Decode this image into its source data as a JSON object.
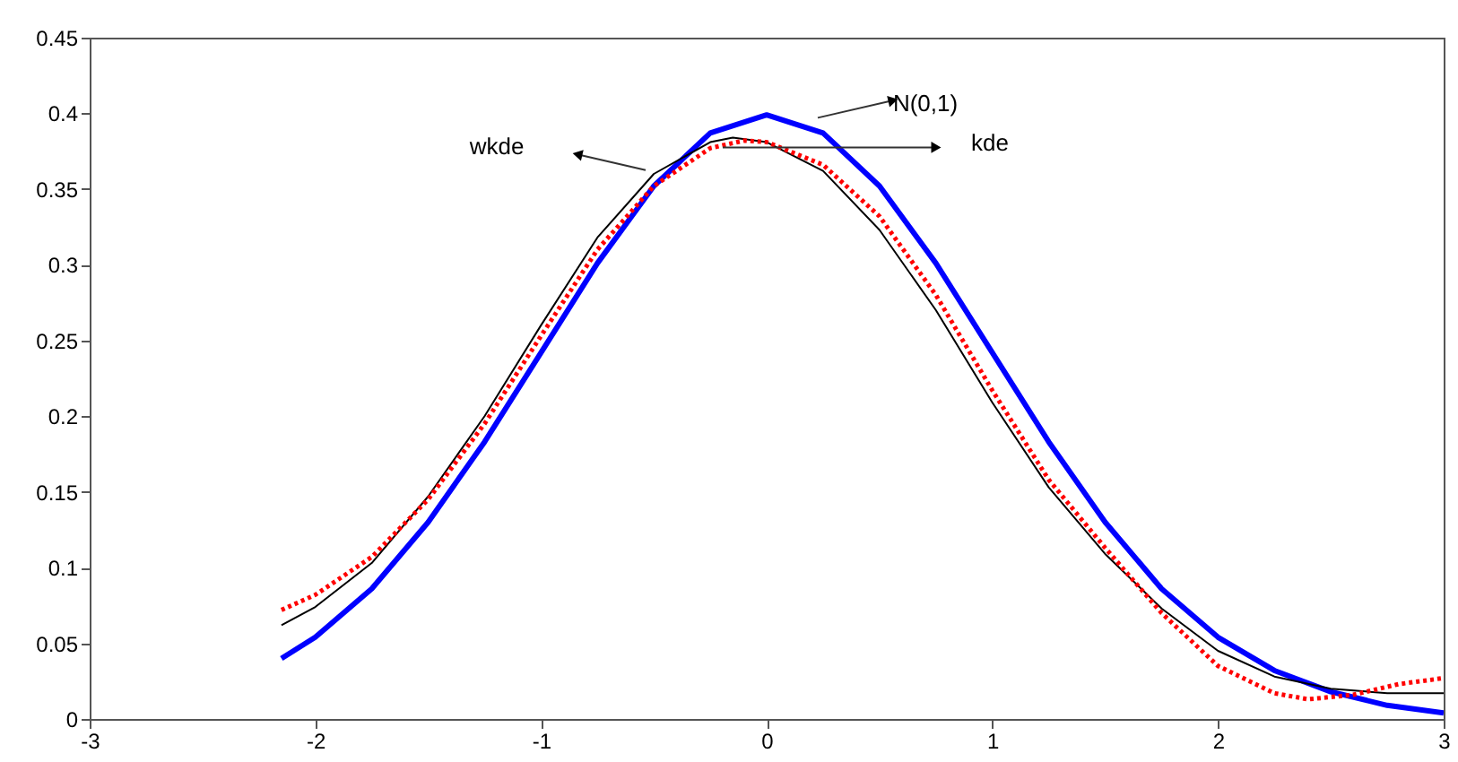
{
  "chart_data": {
    "type": "line",
    "xlim": [
      -3,
      3
    ],
    "xticks": [
      -3,
      -2,
      -1,
      0,
      1,
      2,
      3
    ],
    "ylim": [
      0,
      0.45
    ],
    "yticks": [
      0,
      0.05,
      0.1,
      0.15,
      0.2,
      0.25,
      0.3,
      0.35,
      0.4,
      0.45
    ],
    "grid": false,
    "marker": "none",
    "series": [
      {
        "color": "#0000ff",
        "line_style": "solid",
        "x": [
          -2.15,
          -2,
          -1.75,
          -1.5,
          -1.25,
          -1,
          -0.75,
          -0.5,
          -0.25,
          0,
          0.25,
          0.5,
          0.75,
          1,
          1.25,
          1.5,
          1.75,
          2,
          2.25,
          2.5,
          2.75,
          3
        ],
        "values": [
          0.04,
          0.054,
          0.086,
          0.13,
          0.183,
          0.242,
          0.301,
          0.352,
          0.387,
          0.399,
          0.387,
          0.352,
          0.301,
          0.242,
          0.183,
          0.13,
          0.086,
          0.054,
          0.032,
          0.018,
          0.009,
          0.004
        ]
      },
      {
        "color": "#000000",
        "line_style": "solid",
        "x": [
          -2.15,
          -2,
          -1.75,
          -1.5,
          -1.25,
          -1,
          -0.75,
          -0.5,
          -0.25,
          -0.15,
          0,
          0.25,
          0.5,
          0.75,
          1,
          1.25,
          1.5,
          1.75,
          2,
          2.25,
          2.5,
          2.75,
          3
        ],
        "values": [
          0.062,
          0.074,
          0.103,
          0.147,
          0.2,
          0.26,
          0.318,
          0.36,
          0.381,
          0.384,
          0.381,
          0.362,
          0.323,
          0.27,
          0.209,
          0.153,
          0.109,
          0.073,
          0.045,
          0.028,
          0.02,
          0.017,
          0.017
        ]
      },
      {
        "color": "#ff0000",
        "line_style": "dotted",
        "x": [
          -2.15,
          -2,
          -1.75,
          -1.5,
          -1.25,
          -1,
          -0.75,
          -0.5,
          -0.25,
          -0.1,
          0,
          0.25,
          0.5,
          0.75,
          1,
          1.25,
          1.5,
          1.75,
          2,
          2.25,
          2.4,
          2.6,
          2.8,
          3
        ],
        "values": [
          0.072,
          0.082,
          0.107,
          0.145,
          0.195,
          0.253,
          0.31,
          0.352,
          0.377,
          0.382,
          0.381,
          0.366,
          0.332,
          0.28,
          0.217,
          0.158,
          0.113,
          0.07,
          0.035,
          0.017,
          0.013,
          0.016,
          0.023,
          0.027
        ]
      }
    ],
    "annotations": [
      "N(0,1)",
      "kde",
      "wkde"
    ]
  }
}
